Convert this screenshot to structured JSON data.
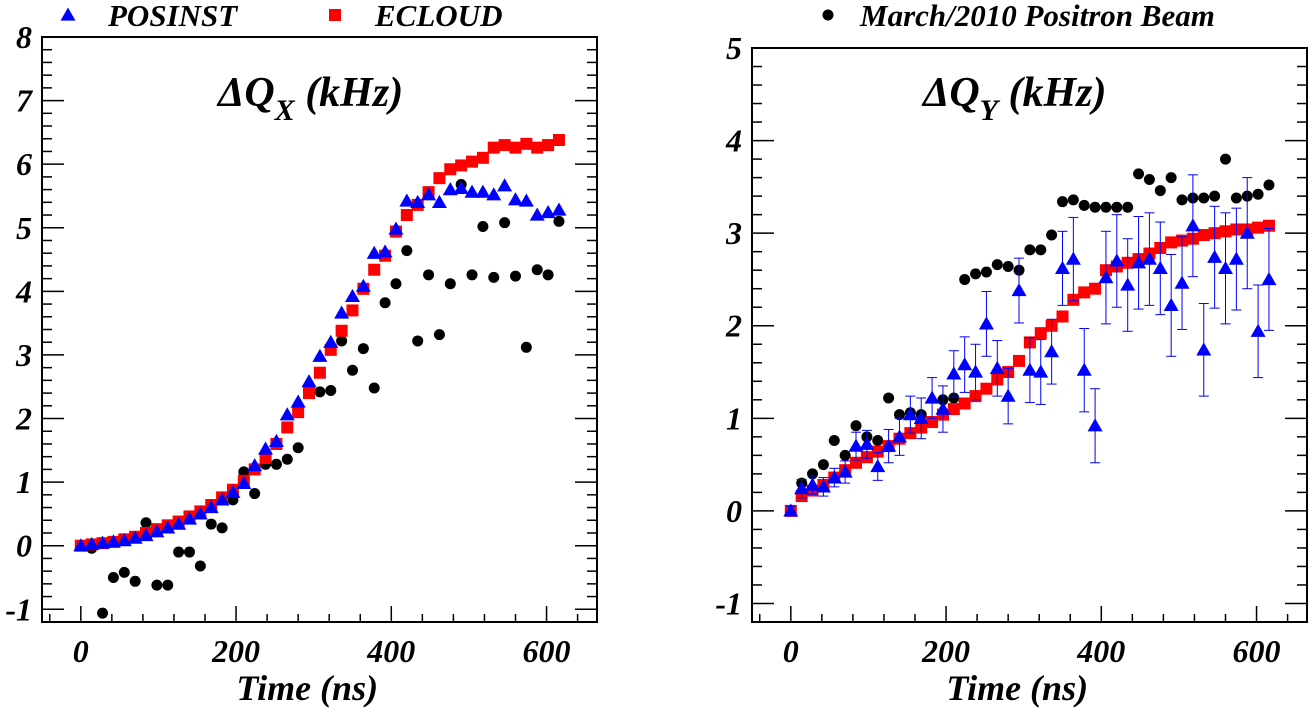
{
  "legend": [
    {
      "label": "POSINST",
      "marker": "triangle",
      "color": "#0000ff"
    },
    {
      "label": "ECLOUD",
      "marker": "square",
      "color": "#ff0000"
    },
    {
      "label": "March/2010 Positron Beam",
      "marker": "circle",
      "color": "#000000"
    }
  ],
  "chart_data": [
    {
      "type": "scatter",
      "title": "ΔQ",
      "title_subscript": "X",
      "title_suffix": " (kHz)",
      "xlabel": "Time (ns)",
      "ylabel": "",
      "xlim": [
        -50,
        665
      ],
      "ylim": [
        -1.2,
        8
      ],
      "xticks": [
        0,
        200,
        400,
        600
      ],
      "yticks": [
        -1,
        0,
        1,
        2,
        3,
        4,
        5,
        6,
        7,
        8
      ],
      "series": [
        {
          "name": "POSINST",
          "marker": "triangle",
          "color": "#0000ff",
          "x": [
            0,
            14,
            28,
            42,
            56,
            70,
            84,
            98,
            112,
            126,
            140,
            154,
            168,
            182,
            196,
            210,
            224,
            238,
            252,
            266,
            280,
            294,
            308,
            322,
            336,
            350,
            364,
            378,
            392,
            406,
            420,
            434,
            448,
            462,
            476,
            490,
            504,
            518,
            532,
            546,
            560,
            574,
            588,
            602,
            616
          ],
          "y": [
            0,
            0.02,
            0.04,
            0.06,
            0.08,
            0.12,
            0.16,
            0.22,
            0.28,
            0.34,
            0.42,
            0.5,
            0.6,
            0.72,
            0.84,
            0.98,
            1.26,
            1.52,
            1.64,
            2.06,
            2.26,
            2.58,
            2.98,
            3.2,
            3.66,
            3.92,
            4.08,
            4.6,
            4.62,
            4.98,
            5.42,
            5.4,
            5.52,
            5.4,
            5.6,
            5.62,
            5.56,
            5.56,
            5.52,
            5.66,
            5.44,
            5.42,
            5.2,
            5.24,
            5.28
          ]
        },
        {
          "name": "ECLOUD",
          "marker": "square",
          "color": "#ff0000",
          "x": [
            0,
            14,
            28,
            42,
            56,
            70,
            84,
            98,
            112,
            126,
            140,
            154,
            168,
            182,
            196,
            210,
            224,
            238,
            252,
            266,
            280,
            294,
            308,
            322,
            336,
            350,
            364,
            378,
            392,
            406,
            420,
            434,
            448,
            462,
            476,
            490,
            504,
            518,
            532,
            546,
            560,
            574,
            588,
            602,
            616
          ],
          "y": [
            0,
            0.02,
            0.04,
            0.06,
            0.1,
            0.14,
            0.2,
            0.26,
            0.32,
            0.38,
            0.46,
            0.54,
            0.64,
            0.76,
            0.88,
            1.02,
            1.2,
            1.38,
            1.6,
            1.86,
            2.1,
            2.4,
            2.72,
            3.08,
            3.38,
            3.7,
            4.04,
            4.34,
            4.56,
            4.94,
            5.2,
            5.36,
            5.56,
            5.78,
            5.92,
            5.98,
            6.04,
            6.1,
            6.26,
            6.3,
            6.26,
            6.32,
            6.26,
            6.3,
            6.38
          ]
        },
        {
          "name": "March/2010 Positron Beam",
          "marker": "circle",
          "color": "#000000",
          "x": [
            14,
            28,
            42,
            56,
            70,
            84,
            98,
            112,
            126,
            140,
            154,
            168,
            182,
            196,
            210,
            224,
            238,
            252,
            266,
            280,
            294,
            308,
            322,
            336,
            350,
            364,
            378,
            392,
            406,
            420,
            434,
            448,
            462,
            476,
            490,
            504,
            518,
            532,
            546,
            560,
            574,
            588,
            602,
            616
          ],
          "y": [
            -0.04,
            -1.06,
            -0.5,
            -0.42,
            -0.56,
            0.36,
            -0.62,
            -0.62,
            -0.1,
            -0.1,
            -0.32,
            0.34,
            0.28,
            0.72,
            1.16,
            0.82,
            1.28,
            1.28,
            1.36,
            1.54,
            2.46,
            2.42,
            2.44,
            3.22,
            2.76,
            3.1,
            2.48,
            3.82,
            4.12,
            4.64,
            3.22,
            4.26,
            3.32,
            4.12,
            5.68,
            4.26,
            5.02,
            4.22,
            5.08,
            4.24,
            3.12,
            4.34,
            4.26,
            5.1
          ]
        }
      ]
    },
    {
      "type": "scatter",
      "title": "ΔQ",
      "title_subscript": "Y",
      "title_suffix": " (kHz)",
      "xlabel": "Time (ns)",
      "ylabel": "",
      "xlim": [
        -50,
        665
      ],
      "ylim": [
        -1.2,
        5
      ],
      "xticks": [
        0,
        200,
        400,
        600
      ],
      "yticks": [
        -1,
        0,
        1,
        2,
        3,
        4,
        5
      ],
      "series": [
        {
          "name": "POSINST",
          "marker": "triangle",
          "color": "#0000ff",
          "x": [
            0,
            14,
            28,
            42,
            56,
            70,
            84,
            98,
            112,
            126,
            140,
            154,
            168,
            182,
            196,
            210,
            224,
            238,
            252,
            266,
            280,
            294,
            308,
            322,
            336,
            350,
            364,
            378,
            392,
            406,
            420,
            434,
            448,
            462,
            476,
            490,
            504,
            518,
            532,
            546,
            560,
            574,
            588,
            602,
            616
          ],
          "y": [
            0,
            0.24,
            0.28,
            0.26,
            0.36,
            0.42,
            0.7,
            0.72,
            0.48,
            0.7,
            0.8,
            1.04,
            1.0,
            1.22,
            1.1,
            1.48,
            1.58,
            1.5,
            2.02,
            1.54,
            1.24,
            2.38,
            1.52,
            1.5,
            1.72,
            2.62,
            2.72,
            1.52,
            0.92,
            2.52,
            2.7,
            2.44,
            2.68,
            2.72,
            2.62,
            2.22,
            2.46,
            3.08,
            1.74,
            2.74,
            2.62,
            2.72,
            3.0,
            1.94,
            2.5
          ],
          "err": [
            0.05,
            0.1,
            0.1,
            0.1,
            0.1,
            0.12,
            0.15,
            0.15,
            0.15,
            0.18,
            0.2,
            0.2,
            0.22,
            0.22,
            0.25,
            0.25,
            0.3,
            0.3,
            0.35,
            0.3,
            0.3,
            0.35,
            0.35,
            0.35,
            0.35,
            0.4,
            0.45,
            0.45,
            0.4,
            0.5,
            0.5,
            0.5,
            0.5,
            0.5,
            0.5,
            0.55,
            0.5,
            0.55,
            0.5,
            0.55,
            0.6,
            0.55,
            0.6,
            0.5,
            0.55
          ]
        },
        {
          "name": "ECLOUD",
          "marker": "square",
          "color": "#ff0000",
          "x": [
            0,
            14,
            28,
            42,
            56,
            70,
            84,
            98,
            112,
            126,
            140,
            154,
            168,
            182,
            196,
            210,
            224,
            238,
            252,
            266,
            280,
            294,
            308,
            322,
            336,
            350,
            364,
            378,
            392,
            406,
            420,
            434,
            448,
            462,
            476,
            490,
            504,
            518,
            532,
            546,
            560,
            574,
            588,
            602,
            616
          ],
          "y": [
            0,
            0.16,
            0.22,
            0.28,
            0.36,
            0.44,
            0.52,
            0.58,
            0.64,
            0.7,
            0.78,
            0.84,
            0.9,
            0.96,
            1.04,
            1.1,
            1.16,
            1.24,
            1.32,
            1.42,
            1.5,
            1.62,
            1.82,
            1.92,
            2.0,
            2.1,
            2.28,
            2.36,
            2.4,
            2.6,
            2.64,
            2.68,
            2.72,
            2.78,
            2.84,
            2.9,
            2.92,
            2.94,
            2.98,
            3.0,
            3.02,
            3.04,
            3.04,
            3.06,
            3.08
          ]
        },
        {
          "name": "March/2010 Positron Beam",
          "marker": "circle",
          "color": "#000000",
          "x": [
            14,
            28,
            42,
            56,
            70,
            84,
            98,
            112,
            126,
            140,
            154,
            168,
            182,
            196,
            210,
            224,
            238,
            252,
            266,
            280,
            294,
            308,
            322,
            336,
            350,
            364,
            378,
            392,
            406,
            420,
            434,
            448,
            462,
            476,
            490,
            504,
            518,
            532,
            546,
            560,
            574,
            588,
            602,
            616
          ],
          "y": [
            0.3,
            0.4,
            0.5,
            0.76,
            0.6,
            0.92,
            0.8,
            0.76,
            1.22,
            1.04,
            1.06,
            1.04,
            0.96,
            1.2,
            1.22,
            2.5,
            2.56,
            2.58,
            2.66,
            2.64,
            2.6,
            2.82,
            2.82,
            2.98,
            3.34,
            3.36,
            3.3,
            3.28,
            3.28,
            3.28,
            3.28,
            3.64,
            3.58,
            3.46,
            3.6,
            3.36,
            3.38,
            3.38,
            3.4,
            3.8,
            3.38,
            3.4,
            3.42,
            3.52
          ]
        }
      ]
    }
  ]
}
